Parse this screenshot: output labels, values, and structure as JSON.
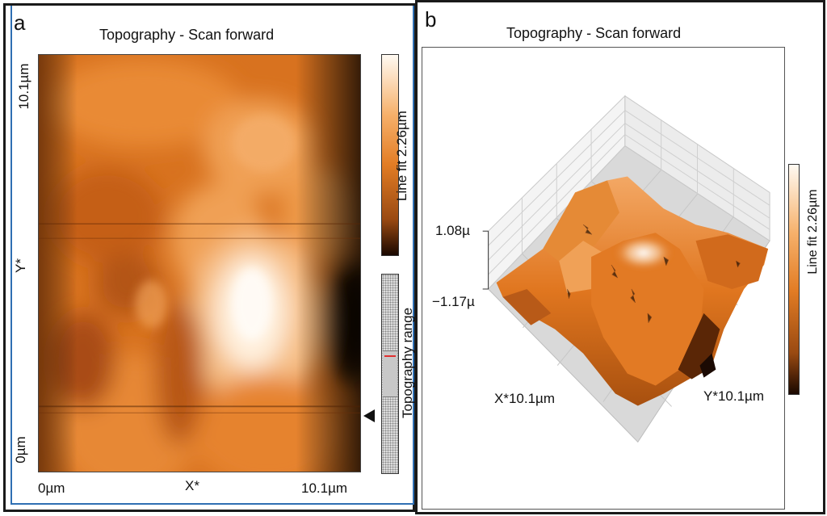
{
  "panel_a": {
    "letter": "a",
    "title": "Topography - Scan forward",
    "y_axis": {
      "top": "10.1µm",
      "mid": "Y*",
      "bottom": "0µm"
    },
    "x_axis": {
      "left": "0µm",
      "mid": "X*",
      "right": "10.1µm"
    },
    "colorbar_label": "Line fit 2.26µm",
    "range_label": "Topography range"
  },
  "panel_b": {
    "letter": "b",
    "title": "Topography - Scan forward",
    "z_max": "1.08µ",
    "z_min": "−1.17µ",
    "x_axis_label": "X*10.1µm",
    "y_axis_label": "Y*10.1µm",
    "colorbar_label": "Line fit 2.26µm"
  },
  "colors": {
    "frame": "#1a1a1a",
    "accent_border": "#2f6fb3",
    "surface": "#e27c24",
    "marker": "#e03030"
  }
}
